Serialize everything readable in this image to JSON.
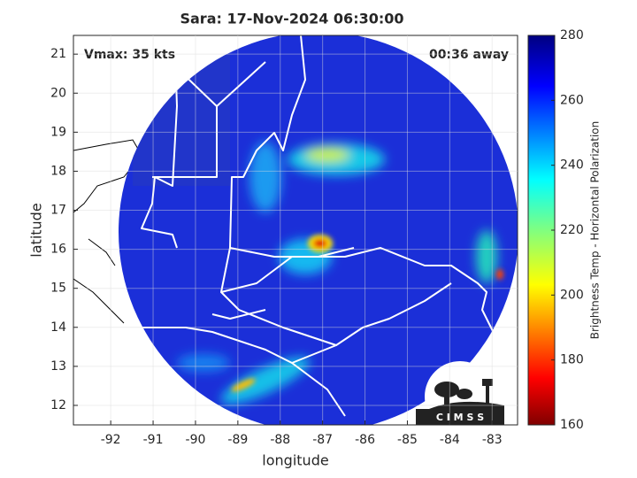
{
  "chart_data": {
    "type": "map",
    "title": "Sara: 17-Nov-2024 06:30:00",
    "annotations": [
      "Vmax: 35 kts",
      "00:36 away"
    ],
    "xlabel": "longitude",
    "ylabel": "latitude",
    "xlim": [
      -92.88,
      -82.4
    ],
    "ylim": [
      11.5,
      21.48
    ],
    "xticks": [
      -92,
      -91,
      -90,
      -89,
      -88,
      -87,
      -86,
      -85,
      -84,
      -83
    ],
    "yticks": [
      12,
      13,
      14,
      15,
      16,
      17,
      18,
      19,
      20,
      21
    ],
    "grid": true,
    "colorbar": {
      "label": "Brightness Temp - Horizontal Polarization",
      "lim": [
        160,
        280
      ],
      "ticks": [
        160,
        180,
        200,
        220,
        240,
        260,
        280
      ]
    },
    "logo": "C I M S S"
  }
}
